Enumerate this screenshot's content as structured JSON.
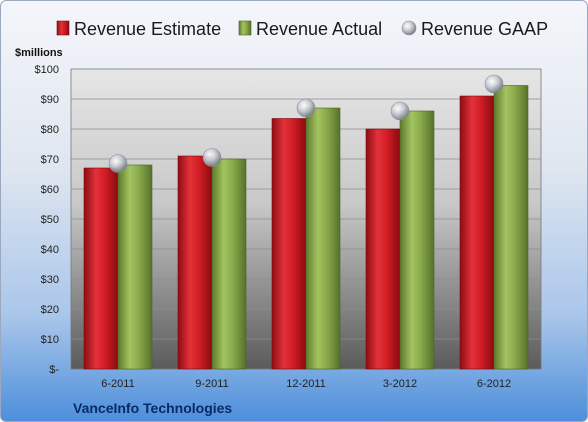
{
  "chart_data": {
    "type": "bar",
    "categories": [
      "6-2011",
      "9-2011",
      "12-2011",
      "3-2012",
      "6-2012"
    ],
    "series": [
      {
        "name": "Revenue Estimate",
        "values": [
          67,
          71,
          83.5,
          80,
          91
        ],
        "color": "#d41e26"
      },
      {
        "name": "Revenue Actual",
        "values": [
          68,
          70,
          87,
          86,
          94.5
        ],
        "color": "#8bab4c"
      }
    ],
    "points": {
      "name": "Revenue GAAP",
      "values": [
        68.5,
        70.5,
        87,
        86,
        95
      ],
      "color": "#c8ccd4"
    },
    "yunit": "$millions",
    "ylim": [
      0,
      100
    ],
    "ytick_step": 10,
    "ytick_labels": [
      "$-",
      "$10",
      "$20",
      "$30",
      "$40",
      "$50",
      "$60",
      "$70",
      "$80",
      "$90",
      "$100"
    ],
    "grid": true,
    "legend_position": "top",
    "company": "VanceInfo Technologies"
  }
}
